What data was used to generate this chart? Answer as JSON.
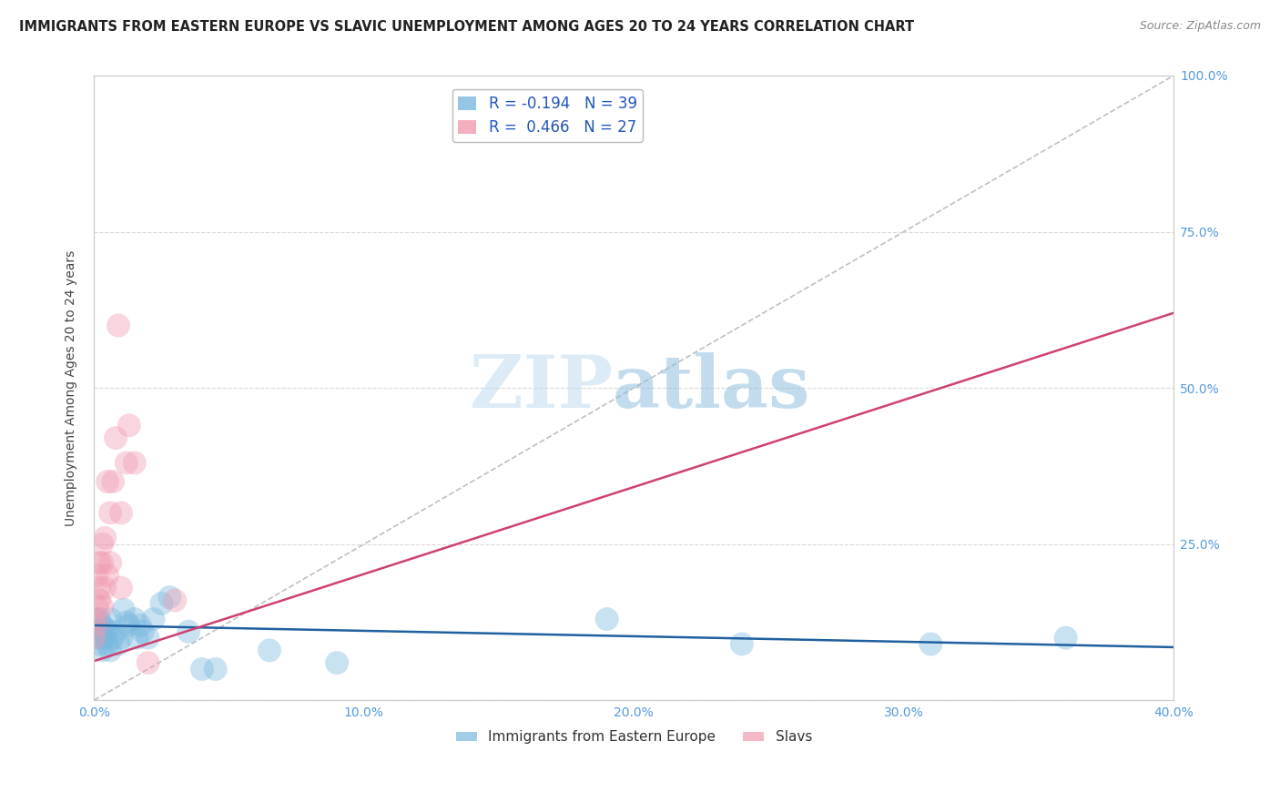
{
  "title": "IMMIGRANTS FROM EASTERN EUROPE VS SLAVIC UNEMPLOYMENT AMONG AGES 20 TO 24 YEARS CORRELATION CHART",
  "source": "Source: ZipAtlas.com",
  "ylabel_label": "Unemployment Among Ages 20 to 24 years",
  "xlim": [
    0.0,
    0.4
  ],
  "ylim": [
    0.0,
    1.0
  ],
  "legend_blue_label": "R = -0.194   N = 39",
  "legend_pink_label": "R =  0.466   N = 27",
  "watermark_zip": "ZIP",
  "watermark_atlas": "atlas",
  "blue_scatter_x": [
    0.0,
    0.001,
    0.001,
    0.002,
    0.002,
    0.002,
    0.003,
    0.003,
    0.003,
    0.004,
    0.004,
    0.005,
    0.005,
    0.006,
    0.006,
    0.007,
    0.008,
    0.009,
    0.01,
    0.011,
    0.012,
    0.013,
    0.015,
    0.016,
    0.017,
    0.018,
    0.02,
    0.022,
    0.025,
    0.028,
    0.035,
    0.04,
    0.045,
    0.065,
    0.09,
    0.19,
    0.24,
    0.31,
    0.36
  ],
  "blue_scatter_y": [
    0.115,
    0.1,
    0.13,
    0.09,
    0.11,
    0.13,
    0.08,
    0.1,
    0.12,
    0.1,
    0.115,
    0.09,
    0.11,
    0.13,
    0.08,
    0.1,
    0.11,
    0.09,
    0.1,
    0.145,
    0.125,
    0.12,
    0.13,
    0.1,
    0.12,
    0.11,
    0.1,
    0.13,
    0.155,
    0.165,
    0.11,
    0.05,
    0.05,
    0.08,
    0.06,
    0.13,
    0.09,
    0.09,
    0.1
  ],
  "pink_scatter_x": [
    0.0,
    0.0,
    0.001,
    0.001,
    0.001,
    0.002,
    0.002,
    0.002,
    0.003,
    0.003,
    0.003,
    0.004,
    0.004,
    0.005,
    0.005,
    0.006,
    0.006,
    0.007,
    0.008,
    0.009,
    0.01,
    0.01,
    0.012,
    0.013,
    0.015,
    0.02,
    0.03
  ],
  "pink_scatter_y": [
    0.1,
    0.13,
    0.12,
    0.15,
    0.2,
    0.16,
    0.18,
    0.22,
    0.15,
    0.22,
    0.25,
    0.18,
    0.26,
    0.2,
    0.35,
    0.22,
    0.3,
    0.35,
    0.42,
    0.6,
    0.18,
    0.3,
    0.38,
    0.44,
    0.38,
    0.06,
    0.16
  ],
  "blue_line_x": [
    0.0,
    0.4
  ],
  "blue_line_y": [
    0.12,
    0.085
  ],
  "pink_line_x": [
    -0.002,
    0.4
  ],
  "pink_line_y": [
    0.06,
    0.62
  ],
  "diag_line_x": [
    0.0,
    0.4
  ],
  "diag_line_y": [
    0.0,
    1.0
  ],
  "scatter_size": 350,
  "scatter_alpha": 0.4,
  "blue_color": "#7ab8e0",
  "pink_color": "#f09ab0",
  "blue_line_color": "#2060a0",
  "pink_line_color": "#d04070",
  "diag_color": "#c0c0c0",
  "bg_color": "#ffffff",
  "grid_color": "#d8d8d8",
  "tick_color": "#5599dd",
  "axis_color": "#cccccc",
  "ylabel_color": "#444444",
  "title_color": "#222222",
  "source_color": "#888888"
}
